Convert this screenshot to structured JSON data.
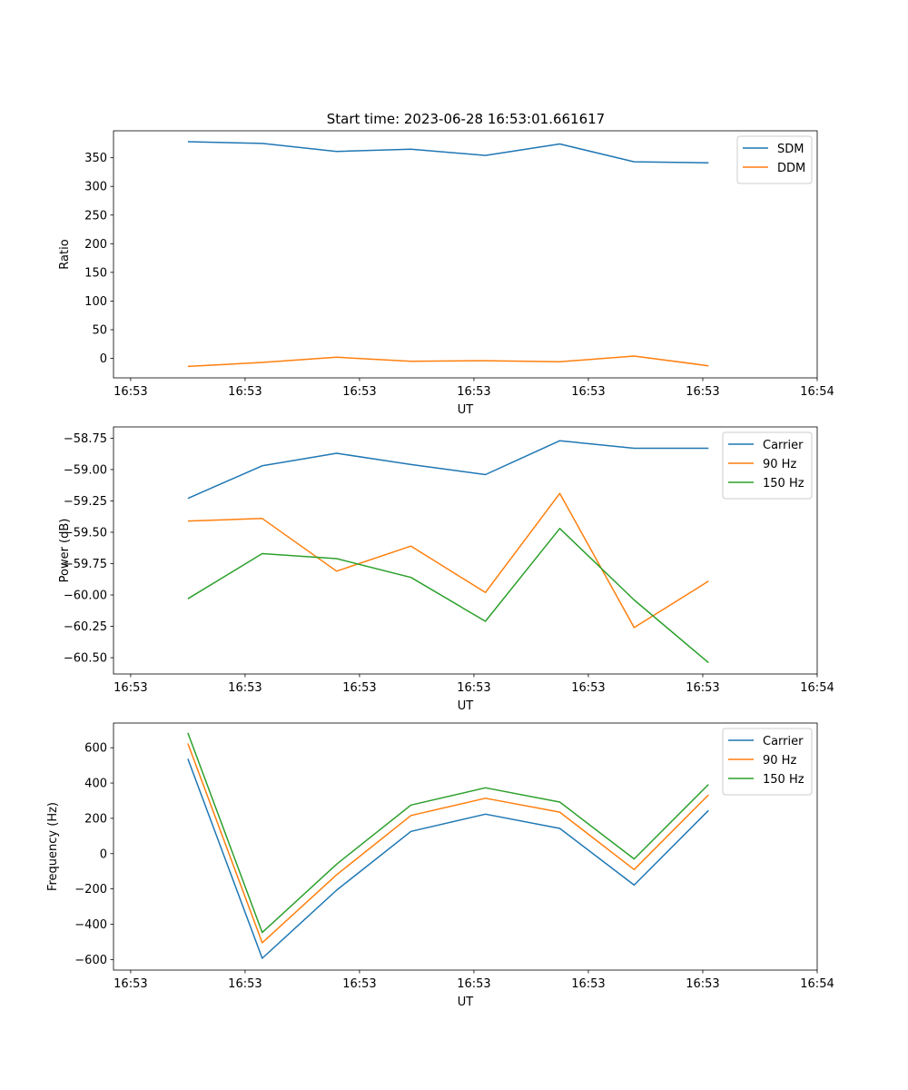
{
  "figure": {
    "title": "Start time: 2023-06-28 16:53:01.661617"
  },
  "colors": {
    "blue": "#1f77b4",
    "orange": "#ff7f0e",
    "green": "#2ca02c",
    "axis": "#000000"
  },
  "chart_data": [
    {
      "type": "line",
      "title": "Start time: 2023-06-28 16:53:01.661617",
      "xlabel": "UT",
      "ylabel": "Ratio",
      "x": [
        2.0,
        3.3,
        4.6,
        5.9,
        7.2,
        8.5,
        9.8,
        11.1
      ],
      "x_ticks": [
        {
          "value": 1.0,
          "label": "16:53"
        },
        {
          "value": 3.0,
          "label": "16:53"
        },
        {
          "value": 5.0,
          "label": "16:53"
        },
        {
          "value": 7.0,
          "label": "16:53"
        },
        {
          "value": 9.0,
          "label": "16:53"
        },
        {
          "value": 11.0,
          "label": "16:53"
        },
        {
          "value": 13.0,
          "label": "16:54"
        }
      ],
      "xlim": [
        0.7,
        13.0
      ],
      "ylim": [
        -34,
        397
      ],
      "y_ticks": [
        0,
        50,
        100,
        150,
        200,
        250,
        300,
        350
      ],
      "legend_position": "top-right",
      "series": [
        {
          "name": "SDM",
          "color": "blue",
          "values": [
            378,
            375,
            361,
            365,
            354,
            374,
            343,
            341
          ]
        },
        {
          "name": "DDM",
          "color": "orange",
          "values": [
            -14,
            -7,
            2,
            -5,
            -4,
            -6,
            4,
            -13
          ]
        }
      ]
    },
    {
      "type": "line",
      "xlabel": "UT",
      "ylabel": "Power (dB)",
      "x": [
        2.0,
        3.3,
        4.6,
        5.9,
        7.2,
        8.5,
        9.8,
        11.1
      ],
      "x_ticks": [
        {
          "value": 1.0,
          "label": "16:53"
        },
        {
          "value": 3.0,
          "label": "16:53"
        },
        {
          "value": 5.0,
          "label": "16:53"
        },
        {
          "value": 7.0,
          "label": "16:53"
        },
        {
          "value": 9.0,
          "label": "16:53"
        },
        {
          "value": 11.0,
          "label": "16:53"
        },
        {
          "value": 13.0,
          "label": "16:54"
        }
      ],
      "xlim": [
        0.7,
        13.0
      ],
      "ylim": [
        -60.63,
        -58.66
      ],
      "y_ticks": [
        -60.5,
        -60.25,
        -60.0,
        -59.75,
        -59.5,
        -59.25,
        -59.0,
        -58.75
      ],
      "y_tick_labels": [
        "−60.50",
        "−60.25",
        "−60.00",
        "−59.75",
        "−59.50",
        "−59.25",
        "−59.00",
        "−58.75"
      ],
      "legend_position": "top-right",
      "series": [
        {
          "name": "Carrier",
          "color": "blue",
          "values": [
            -59.23,
            -58.97,
            -58.87,
            -58.96,
            -59.04,
            -58.77,
            -58.83,
            -58.83
          ]
        },
        {
          "name": "90 Hz",
          "color": "orange",
          "values": [
            -59.41,
            -59.39,
            -59.81,
            -59.61,
            -59.98,
            -59.19,
            -60.26,
            -59.89
          ]
        },
        {
          "name": "150 Hz",
          "color": "green",
          "values": [
            -60.03,
            -59.67,
            -59.71,
            -59.86,
            -60.21,
            -59.47,
            -60.04,
            -60.54
          ]
        }
      ]
    },
    {
      "type": "line",
      "xlabel": "UT",
      "ylabel": "Frequency (Hz)",
      "x": [
        2.0,
        3.3,
        4.6,
        5.9,
        7.2,
        8.5,
        9.8,
        11.1
      ],
      "x_ticks": [
        {
          "value": 1.0,
          "label": "16:53"
        },
        {
          "value": 3.0,
          "label": "16:53"
        },
        {
          "value": 5.0,
          "label": "16:53"
        },
        {
          "value": 7.0,
          "label": "16:53"
        },
        {
          "value": 9.0,
          "label": "16:53"
        },
        {
          "value": 11.0,
          "label": "16:53"
        },
        {
          "value": 13.0,
          "label": "16:54"
        }
      ],
      "xlim": [
        0.7,
        13.0
      ],
      "ylim": [
        -660,
        740
      ],
      "y_ticks": [
        -600,
        -400,
        -200,
        0,
        200,
        400,
        600
      ],
      "y_tick_labels": [
        "−600",
        "−400",
        "−200",
        "0",
        "200",
        "400",
        "600"
      ],
      "legend_position": "top-right",
      "series": [
        {
          "name": "Carrier",
          "color": "blue",
          "values": [
            537,
            -593,
            -207,
            126,
            224,
            143,
            -178,
            245
          ]
        },
        {
          "name": "90 Hz",
          "color": "orange",
          "values": [
            624,
            -505,
            -120,
            216,
            314,
            235,
            -90,
            333
          ]
        },
        {
          "name": "150 Hz",
          "color": "green",
          "values": [
            684,
            -447,
            -60,
            275,
            373,
            292,
            -30,
            392
          ]
        }
      ]
    }
  ]
}
